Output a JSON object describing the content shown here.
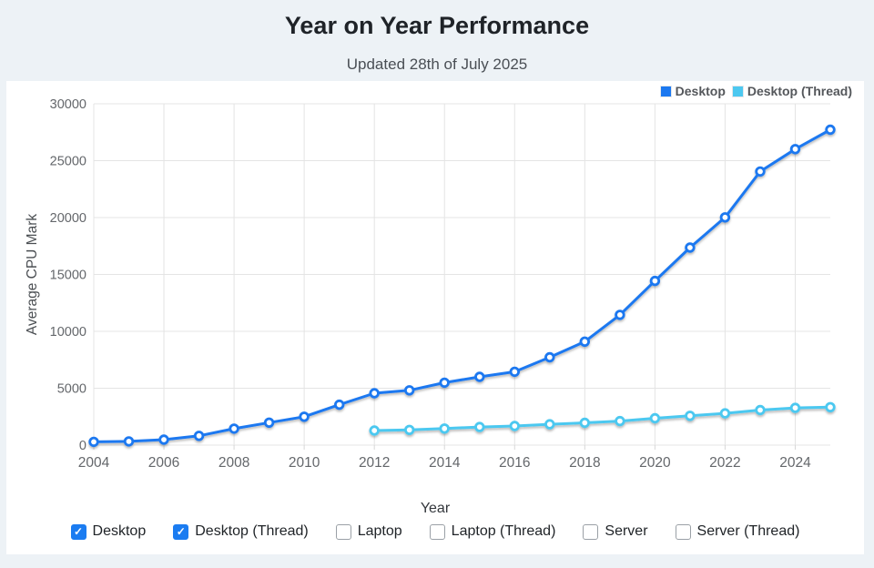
{
  "header": {
    "title": "Year on Year Performance",
    "subtitle": "Updated 28th of July 2025"
  },
  "colors": {
    "page_background": "#edf2f6",
    "panel_background": "#ffffff",
    "desktop_blue": "#1b78f0",
    "desktop_thread_lightblue": "#4cc8f0",
    "checkbox_checked_blue": "#1b7cf1",
    "gridline_gray": "#e4e4e4",
    "tick_label_gray": "#64676b"
  },
  "chart_data": {
    "type": "line",
    "title": "Year on Year Performance",
    "subtitle": "Updated 28th of July 2025",
    "xlabel": "Year",
    "ylabel": "Average CPU Mark",
    "xlim": [
      2004,
      2025
    ],
    "ylim": [
      0,
      30000
    ],
    "x_ticks": [
      2004,
      2006,
      2008,
      2010,
      2012,
      2014,
      2016,
      2018,
      2020,
      2022,
      2024
    ],
    "y_ticks": [
      0,
      5000,
      10000,
      15000,
      20000,
      25000,
      30000
    ],
    "grid": true,
    "legend_position": "top-right",
    "marker_style": "open-circle",
    "series": [
      {
        "name": "Desktop",
        "color": "#1b78f0",
        "points": [
          [
            2004,
            290
          ],
          [
            2005,
            330
          ],
          [
            2006,
            480
          ],
          [
            2007,
            820
          ],
          [
            2008,
            1450
          ],
          [
            2009,
            1980
          ],
          [
            2010,
            2500
          ],
          [
            2011,
            3550
          ],
          [
            2012,
            4560
          ],
          [
            2013,
            4820
          ],
          [
            2014,
            5490
          ],
          [
            2015,
            6000
          ],
          [
            2016,
            6450
          ],
          [
            2017,
            7720
          ],
          [
            2018,
            9100
          ],
          [
            2019,
            11450
          ],
          [
            2020,
            14430
          ],
          [
            2021,
            17360
          ],
          [
            2022,
            20020
          ],
          [
            2023,
            24050
          ],
          [
            2024,
            26020
          ],
          [
            2025,
            27720
          ]
        ]
      },
      {
        "name": "Desktop (Thread)",
        "color": "#4cc8f0",
        "points": [
          [
            2012,
            1280
          ],
          [
            2013,
            1340
          ],
          [
            2014,
            1460
          ],
          [
            2015,
            1590
          ],
          [
            2016,
            1680
          ],
          [
            2017,
            1830
          ],
          [
            2018,
            1960
          ],
          [
            2019,
            2110
          ],
          [
            2020,
            2360
          ],
          [
            2021,
            2580
          ],
          [
            2022,
            2790
          ],
          [
            2023,
            3080
          ],
          [
            2024,
            3270
          ],
          [
            2025,
            3340
          ]
        ]
      }
    ]
  },
  "controls": {
    "checkboxes": [
      {
        "label": "Desktop",
        "checked": true
      },
      {
        "label": "Desktop (Thread)",
        "checked": true
      },
      {
        "label": "Laptop",
        "checked": false
      },
      {
        "label": "Laptop (Thread)",
        "checked": false
      },
      {
        "label": "Server",
        "checked": false
      },
      {
        "label": "Server (Thread)",
        "checked": false
      }
    ],
    "check_glyph": "✓"
  }
}
